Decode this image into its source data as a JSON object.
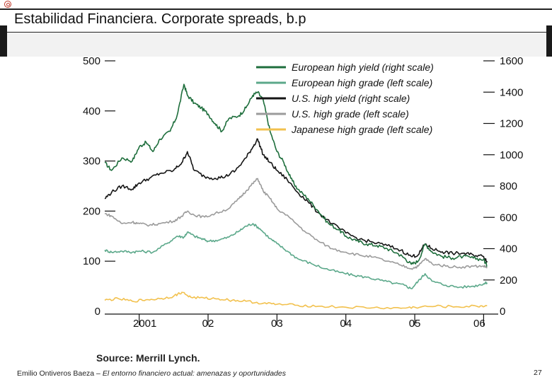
{
  "slide": {
    "title": "Estabilidad Financiera. Corporate spreads, b.p",
    "source": "Source: Merrill Lynch.",
    "footer_author": "Emilio Ontiveros Baeza – ",
    "footer_subtitle": "El entorno financiero actual: amenazas y oportunidades",
    "page_number": "27"
  },
  "colors": {
    "eu_hy": "#1e6e3c",
    "eu_hg": "#5ba88a",
    "us_hy": "#151515",
    "us_hg": "#9b9b9b",
    "jp_hg": "#f2c14e"
  },
  "chart_data": {
    "type": "line",
    "x_ticks": [
      "2001",
      "02",
      "03",
      "04",
      "05",
      "06"
    ],
    "x_tick_positions": [
      2001,
      2002,
      2003,
      2004,
      2005,
      2006
    ],
    "x_range": [
      2000.5,
      2006.15
    ],
    "left_axis": {
      "ticks": [
        "0",
        "100",
        "200",
        "300",
        "400",
        "500"
      ],
      "range": [
        0,
        500
      ]
    },
    "right_axis": {
      "ticks": [
        "0",
        "200",
        "400",
        "600",
        "800",
        "1000",
        "1200",
        "1400",
        "1600"
      ],
      "range": [
        0,
        1600
      ]
    },
    "legend_position": "top-right",
    "series": [
      {
        "name": "European high yield (right scale)",
        "axis": "right",
        "color_key": "eu_hy",
        "points": [
          [
            2000.5,
            950
          ],
          [
            2000.6,
            900
          ],
          [
            2000.75,
            980
          ],
          [
            2000.9,
            960
          ],
          [
            2001.0,
            1050
          ],
          [
            2001.1,
            1080
          ],
          [
            2001.2,
            1020
          ],
          [
            2001.3,
            1100
          ],
          [
            2001.45,
            1150
          ],
          [
            2001.55,
            1250
          ],
          [
            2001.65,
            1450
          ],
          [
            2001.7,
            1380
          ],
          [
            2001.8,
            1330
          ],
          [
            2001.9,
            1300
          ],
          [
            2002.0,
            1260
          ],
          [
            2002.1,
            1200
          ],
          [
            2002.2,
            1150
          ],
          [
            2002.3,
            1230
          ],
          [
            2002.45,
            1250
          ],
          [
            2002.55,
            1300
          ],
          [
            2002.65,
            1380
          ],
          [
            2002.72,
            1400
          ],
          [
            2002.8,
            1350
          ],
          [
            2002.9,
            1150
          ],
          [
            2003.0,
            1020
          ],
          [
            2003.1,
            950
          ],
          [
            2003.2,
            850
          ],
          [
            2003.3,
            780
          ],
          [
            2003.45,
            720
          ],
          [
            2003.6,
            640
          ],
          [
            2003.75,
            560
          ],
          [
            2003.9,
            520
          ],
          [
            2004.0,
            480
          ],
          [
            2004.15,
            450
          ],
          [
            2004.3,
            430
          ],
          [
            2004.45,
            420
          ],
          [
            2004.6,
            400
          ],
          [
            2004.75,
            370
          ],
          [
            2004.85,
            340
          ],
          [
            2004.95,
            300
          ],
          [
            2005.05,
            320
          ],
          [
            2005.15,
            430
          ],
          [
            2005.25,
            380
          ],
          [
            2005.4,
            350
          ],
          [
            2005.55,
            340
          ],
          [
            2005.7,
            350
          ],
          [
            2005.85,
            340
          ],
          [
            2006.0,
            330
          ],
          [
            2006.05,
            290
          ]
        ]
      },
      {
        "name": "European high grade (left scale)",
        "axis": "left",
        "color_key": "eu_hg",
        "points": [
          [
            2000.5,
            122
          ],
          [
            2000.6,
            118
          ],
          [
            2000.75,
            120
          ],
          [
            2000.9,
            118
          ],
          [
            2001.0,
            120
          ],
          [
            2001.2,
            118
          ],
          [
            2001.4,
            135
          ],
          [
            2001.55,
            150
          ],
          [
            2001.65,
            148
          ],
          [
            2001.7,
            158
          ],
          [
            2001.8,
            150
          ],
          [
            2001.9,
            145
          ],
          [
            2002.0,
            140
          ],
          [
            2002.15,
            142
          ],
          [
            2002.3,
            148
          ],
          [
            2002.45,
            160
          ],
          [
            2002.55,
            170
          ],
          [
            2002.65,
            175
          ],
          [
            2002.75,
            165
          ],
          [
            2002.9,
            145
          ],
          [
            2003.0,
            135
          ],
          [
            2003.15,
            120
          ],
          [
            2003.3,
            105
          ],
          [
            2003.5,
            95
          ],
          [
            2003.7,
            85
          ],
          [
            2003.9,
            78
          ],
          [
            2004.1,
            72
          ],
          [
            2004.3,
            68
          ],
          [
            2004.5,
            62
          ],
          [
            2004.7,
            56
          ],
          [
            2004.85,
            52
          ],
          [
            2004.95,
            45
          ],
          [
            2005.05,
            60
          ],
          [
            2005.15,
            75
          ],
          [
            2005.25,
            60
          ],
          [
            2005.45,
            52
          ],
          [
            2005.65,
            48
          ],
          [
            2005.85,
            50
          ],
          [
            2006.0,
            55
          ],
          [
            2006.05,
            57
          ]
        ]
      },
      {
        "name": "U.S. high yield (right scale)",
        "axis": "right",
        "color_key": "us_hy",
        "points": [
          [
            2000.5,
            720
          ],
          [
            2000.6,
            760
          ],
          [
            2000.75,
            800
          ],
          [
            2000.9,
            780
          ],
          [
            2001.0,
            820
          ],
          [
            2001.15,
            850
          ],
          [
            2001.3,
            880
          ],
          [
            2001.5,
            900
          ],
          [
            2001.62,
            950
          ],
          [
            2001.7,
            1020
          ],
          [
            2001.8,
            900
          ],
          [
            2001.95,
            860
          ],
          [
            2002.1,
            850
          ],
          [
            2002.25,
            860
          ],
          [
            2002.4,
            900
          ],
          [
            2002.55,
            980
          ],
          [
            2002.65,
            1050
          ],
          [
            2002.72,
            1100
          ],
          [
            2002.8,
            1000
          ],
          [
            2002.9,
            950
          ],
          [
            2003.0,
            900
          ],
          [
            2003.15,
            840
          ],
          [
            2003.3,
            760
          ],
          [
            2003.45,
            700
          ],
          [
            2003.6,
            630
          ],
          [
            2003.8,
            560
          ],
          [
            2004.0,
            500
          ],
          [
            2004.2,
            460
          ],
          [
            2004.4,
            440
          ],
          [
            2004.6,
            420
          ],
          [
            2004.8,
            390
          ],
          [
            2004.95,
            350
          ],
          [
            2005.05,
            360
          ],
          [
            2005.15,
            430
          ],
          [
            2005.25,
            400
          ],
          [
            2005.4,
            380
          ],
          [
            2005.55,
            370
          ],
          [
            2005.7,
            370
          ],
          [
            2005.85,
            360
          ],
          [
            2006.0,
            350
          ],
          [
            2006.05,
            320
          ]
        ]
      },
      {
        "name": "U.S. high grade (left scale)",
        "axis": "left",
        "color_key": "us_hg",
        "points": [
          [
            2000.5,
            195
          ],
          [
            2000.6,
            190
          ],
          [
            2000.75,
            175
          ],
          [
            2000.9,
            178
          ],
          [
            2001.0,
            175
          ],
          [
            2001.15,
            172
          ],
          [
            2001.3,
            175
          ],
          [
            2001.5,
            180
          ],
          [
            2001.62,
            190
          ],
          [
            2001.7,
            200
          ],
          [
            2001.8,
            192
          ],
          [
            2001.95,
            188
          ],
          [
            2002.1,
            195
          ],
          [
            2002.3,
            205
          ],
          [
            2002.45,
            225
          ],
          [
            2002.55,
            240
          ],
          [
            2002.65,
            255
          ],
          [
            2002.72,
            265
          ],
          [
            2002.8,
            240
          ],
          [
            2002.9,
            225
          ],
          [
            2003.0,
            205
          ],
          [
            2003.2,
            185
          ],
          [
            2003.4,
            160
          ],
          [
            2003.6,
            140
          ],
          [
            2003.8,
            125
          ],
          [
            2004.0,
            118
          ],
          [
            2004.2,
            112
          ],
          [
            2004.4,
            108
          ],
          [
            2004.6,
            100
          ],
          [
            2004.8,
            92
          ],
          [
            2004.95,
            85
          ],
          [
            2005.05,
            90
          ],
          [
            2005.15,
            105
          ],
          [
            2005.25,
            95
          ],
          [
            2005.45,
            90
          ],
          [
            2005.65,
            88
          ],
          [
            2005.85,
            90
          ],
          [
            2006.0,
            90
          ],
          [
            2006.05,
            88
          ]
        ]
      },
      {
        "name": "Japanese high grade (left scale)",
        "axis": "left",
        "color_key": "jp_hg",
        "points": [
          [
            2000.5,
            22
          ],
          [
            2000.7,
            25
          ],
          [
            2000.9,
            20
          ],
          [
            2001.1,
            23
          ],
          [
            2001.3,
            25
          ],
          [
            2001.5,
            30
          ],
          [
            2001.62,
            38
          ],
          [
            2001.75,
            28
          ],
          [
            2001.95,
            26
          ],
          [
            2002.15,
            25
          ],
          [
            2002.35,
            22
          ],
          [
            2002.55,
            20
          ],
          [
            2002.8,
            16
          ],
          [
            2003.0,
            14
          ],
          [
            2003.3,
            12
          ],
          [
            2003.6,
            10
          ],
          [
            2004.0,
            8
          ],
          [
            2004.4,
            7
          ],
          [
            2004.8,
            6
          ],
          [
            2005.0,
            8
          ],
          [
            2005.3,
            10
          ],
          [
            2005.6,
            9
          ],
          [
            2005.9,
            10
          ],
          [
            2006.05,
            11
          ]
        ]
      }
    ]
  }
}
